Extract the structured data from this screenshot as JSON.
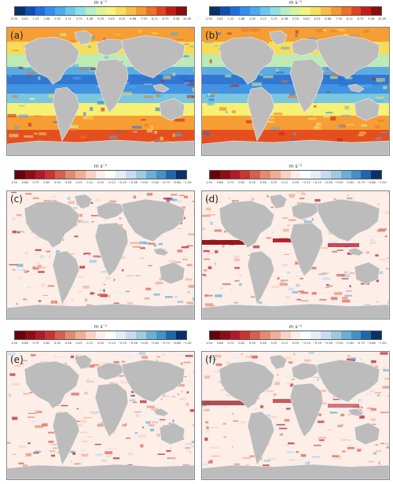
{
  "panels": [
    {
      "label": "(a)",
      "type": "speed"
    },
    {
      "label": "(b)",
      "type": "speed"
    },
    {
      "label": "(c)",
      "type": "diff"
    },
    {
      "label": "(d)",
      "type": "diff"
    },
    {
      "label": "(e)",
      "type": "diff"
    },
    {
      "label": "(f)",
      "type": "diff"
    }
  ],
  "speed_colorbar": {
    "unit": "m s⁻¹",
    "ticks": [
      "0.00",
      "0.62",
      "1.25",
      "1.88",
      "2.50",
      "3.12",
      "3.75",
      "4.38",
      "5.00",
      "5.62",
      "6.25",
      "6.88",
      "7.50",
      "8.12",
      "8.75",
      "9.38",
      "10.00"
    ],
    "colors": [
      "#08306b",
      "#0b4fb5",
      "#1c6fe0",
      "#2f8ef5",
      "#4aaaf5",
      "#6cc6f0",
      "#8ee0e8",
      "#b5f0c0",
      "#d8f59a",
      "#f5f57a",
      "#f7df5a",
      "#f7c043",
      "#f59a33",
      "#f07026",
      "#e2421c",
      "#c41c14",
      "#8c0c0c"
    ]
  },
  "diff_colorbar": {
    "unit": "m s⁻¹",
    "ticks": [
      "1.00",
      "0.88",
      "0.75",
      "0.62",
      "0.50",
      "0.38",
      "0.25",
      "0.12",
      "0.00",
      "−0.12",
      "−0.25",
      "−0.38",
      "−0.50",
      "−0.62",
      "−0.75",
      "−0.88",
      "−1.00"
    ],
    "colors": [
      "#67000d",
      "#8e0d13",
      "#b2182b",
      "#c9342f",
      "#d6604d",
      "#e38b71",
      "#f0ad93",
      "#f8d1c1",
      "#fdeee8",
      "#ffffff",
      "#e3eef7",
      "#c6dbef",
      "#9ecae1",
      "#6baed6",
      "#4292c6",
      "#2166ac",
      "#08306b"
    ]
  },
  "colors": {
    "land": "#bcbcbc",
    "coast": "#f2f2f2",
    "frame": "#888888"
  }
}
